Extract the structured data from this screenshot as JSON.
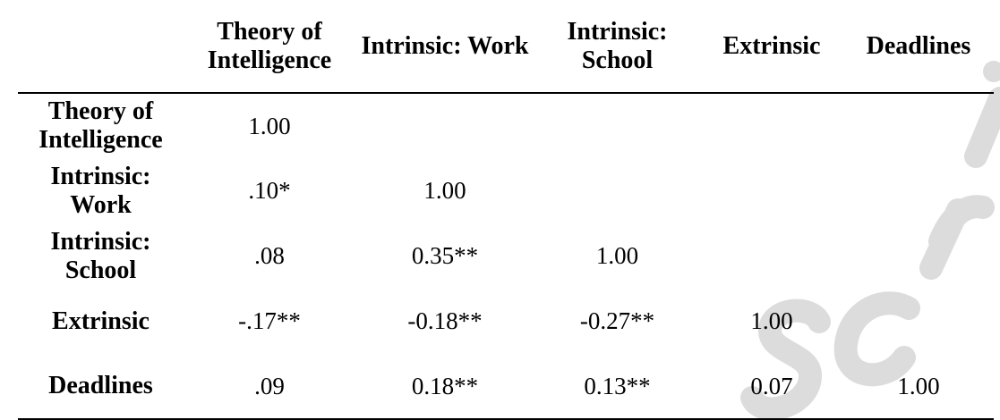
{
  "table": {
    "headers": [
      "",
      "Theory of Intelligence",
      "Intrinsic: Work",
      "Intrinsic: School",
      "Extrinsic",
      "Deadlines"
    ],
    "rows": [
      {
        "label": "Theory of Intelligence",
        "cells": [
          "1.00",
          "",
          "",
          "",
          ""
        ]
      },
      {
        "label": "Intrinsic: Work",
        "cells": [
          ".10*",
          "1.00",
          "",
          "",
          ""
        ]
      },
      {
        "label": "Intrinsic: School",
        "cells": [
          ".08",
          "0.35**",
          "1.00",
          "",
          ""
        ]
      },
      {
        "label": "Extrinsic",
        "cells": [
          "-.17**",
          "-0.18**",
          "-0.27**",
          "1.00",
          ""
        ]
      },
      {
        "label": "Deadlines",
        "cells": [
          ".09",
          "0.18**",
          "0.13**",
          "0.07",
          "1.00"
        ]
      }
    ]
  },
  "watermark": {
    "color": "#d9d9d9"
  }
}
